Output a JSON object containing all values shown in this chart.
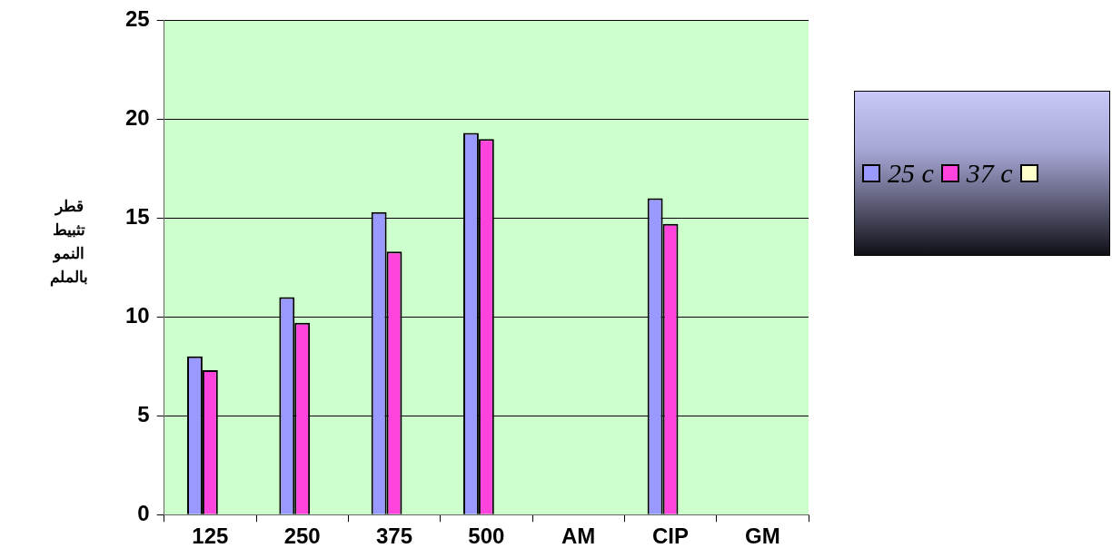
{
  "chart_data": {
    "type": "bar",
    "ylabel": "قطر تثبيط النمو بالملم",
    "categories": [
      "125",
      "250",
      "375",
      "500",
      "AM",
      "CIP",
      "GM"
    ],
    "series": [
      {
        "name": "25 c",
        "color": "#9999ff",
        "values": [
          8,
          11,
          15.3,
          19.3,
          null,
          16,
          null
        ]
      },
      {
        "name": "37 c",
        "color": "#ff44dd",
        "values": [
          7.3,
          9.7,
          13.3,
          19.0,
          null,
          14.7,
          null
        ]
      },
      {
        "color": "#ffffcc",
        "values": [
          null,
          null,
          null,
          null,
          null,
          null,
          null
        ]
      }
    ],
    "ylim": [
      0,
      25
    ],
    "yticks": [
      0,
      5,
      10,
      15,
      20,
      25
    ],
    "grid": "y",
    "legend": "right"
  }
}
